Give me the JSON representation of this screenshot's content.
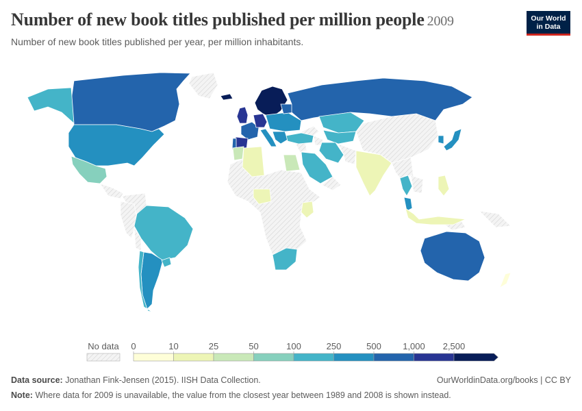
{
  "header": {
    "title": "Number of new book titles published per million people",
    "year": "2009",
    "subtitle": "Number of new book titles published per year, per million inhabitants."
  },
  "logo": {
    "line1": "Our World",
    "line2": "in Data"
  },
  "legend": {
    "no_data_label": "No data",
    "thresholds": [
      "0",
      "10",
      "25",
      "50",
      "100",
      "250",
      "500",
      "1,000",
      "2,500"
    ],
    "colors": [
      "#fefed8",
      "#edf5b6",
      "#c9e8b8",
      "#86d0bd",
      "#44b4c8",
      "#2490c0",
      "#2364ac",
      "#283593",
      "#081d58"
    ]
  },
  "map": {
    "no_data_color": "#eeeeee",
    "regions": [
      {
        "name": "Canada",
        "bin": 6
      },
      {
        "name": "United States",
        "bin": 5
      },
      {
        "name": "Alaska",
        "bin": 4
      },
      {
        "name": "Mexico",
        "bin": 3
      },
      {
        "name": "Brazil",
        "bin": 4
      },
      {
        "name": "Argentina",
        "bin": 5
      },
      {
        "name": "Chile",
        "bin": 4
      },
      {
        "name": "Uruguay",
        "bin": 4
      },
      {
        "name": "Iceland",
        "bin": 8
      },
      {
        "name": "Nordic countries",
        "bin": 8
      },
      {
        "name": "United Kingdom",
        "bin": 7
      },
      {
        "name": "France",
        "bin": 6
      },
      {
        "name": "Spain",
        "bin": 7
      },
      {
        "name": "Portugal",
        "bin": 6
      },
      {
        "name": "Germany",
        "bin": 7
      },
      {
        "name": "Italy",
        "bin": 5
      },
      {
        "name": "Eastern Europe",
        "bin": 5
      },
      {
        "name": "Balkans",
        "bin": 5
      },
      {
        "name": "Baltic states",
        "bin": 6
      },
      {
        "name": "Russia",
        "bin": 6
      },
      {
        "name": "Turkey",
        "bin": 4
      },
      {
        "name": "Kazakhstan",
        "bin": 4
      },
      {
        "name": "Central Asia",
        "bin": 4
      },
      {
        "name": "Iran",
        "bin": 4
      },
      {
        "name": "Saudi Arabia",
        "bin": 4
      },
      {
        "name": "Egypt",
        "bin": 2
      },
      {
        "name": "Algeria",
        "bin": 1
      },
      {
        "name": "Morocco",
        "bin": 2
      },
      {
        "name": "Nigeria",
        "bin": 1
      },
      {
        "name": "Kenya",
        "bin": 1
      },
      {
        "name": "South Africa",
        "bin": 4
      },
      {
        "name": "India",
        "bin": 1
      },
      {
        "name": "Thailand",
        "bin": 4
      },
      {
        "name": "Malaysia",
        "bin": 5
      },
      {
        "name": "Indonesia",
        "bin": 1
      },
      {
        "name": "Philippines",
        "bin": 1
      },
      {
        "name": "Japan",
        "bin": 5
      },
      {
        "name": "South Korea",
        "bin": 5
      },
      {
        "name": "Australia",
        "bin": 6
      },
      {
        "name": "New Zealand",
        "bin": 0
      }
    ]
  },
  "footer": {
    "source_label": "Data source:",
    "source_text": "Jonathan Fink-Jensen (2015). IISH Data Collection.",
    "url": "OurWorldinData.org/books | CC BY",
    "note_label": "Note:",
    "note_text": "Where data for 2009 is unavailable, the value from the closest year between 1989 and 2008 is shown instead."
  }
}
